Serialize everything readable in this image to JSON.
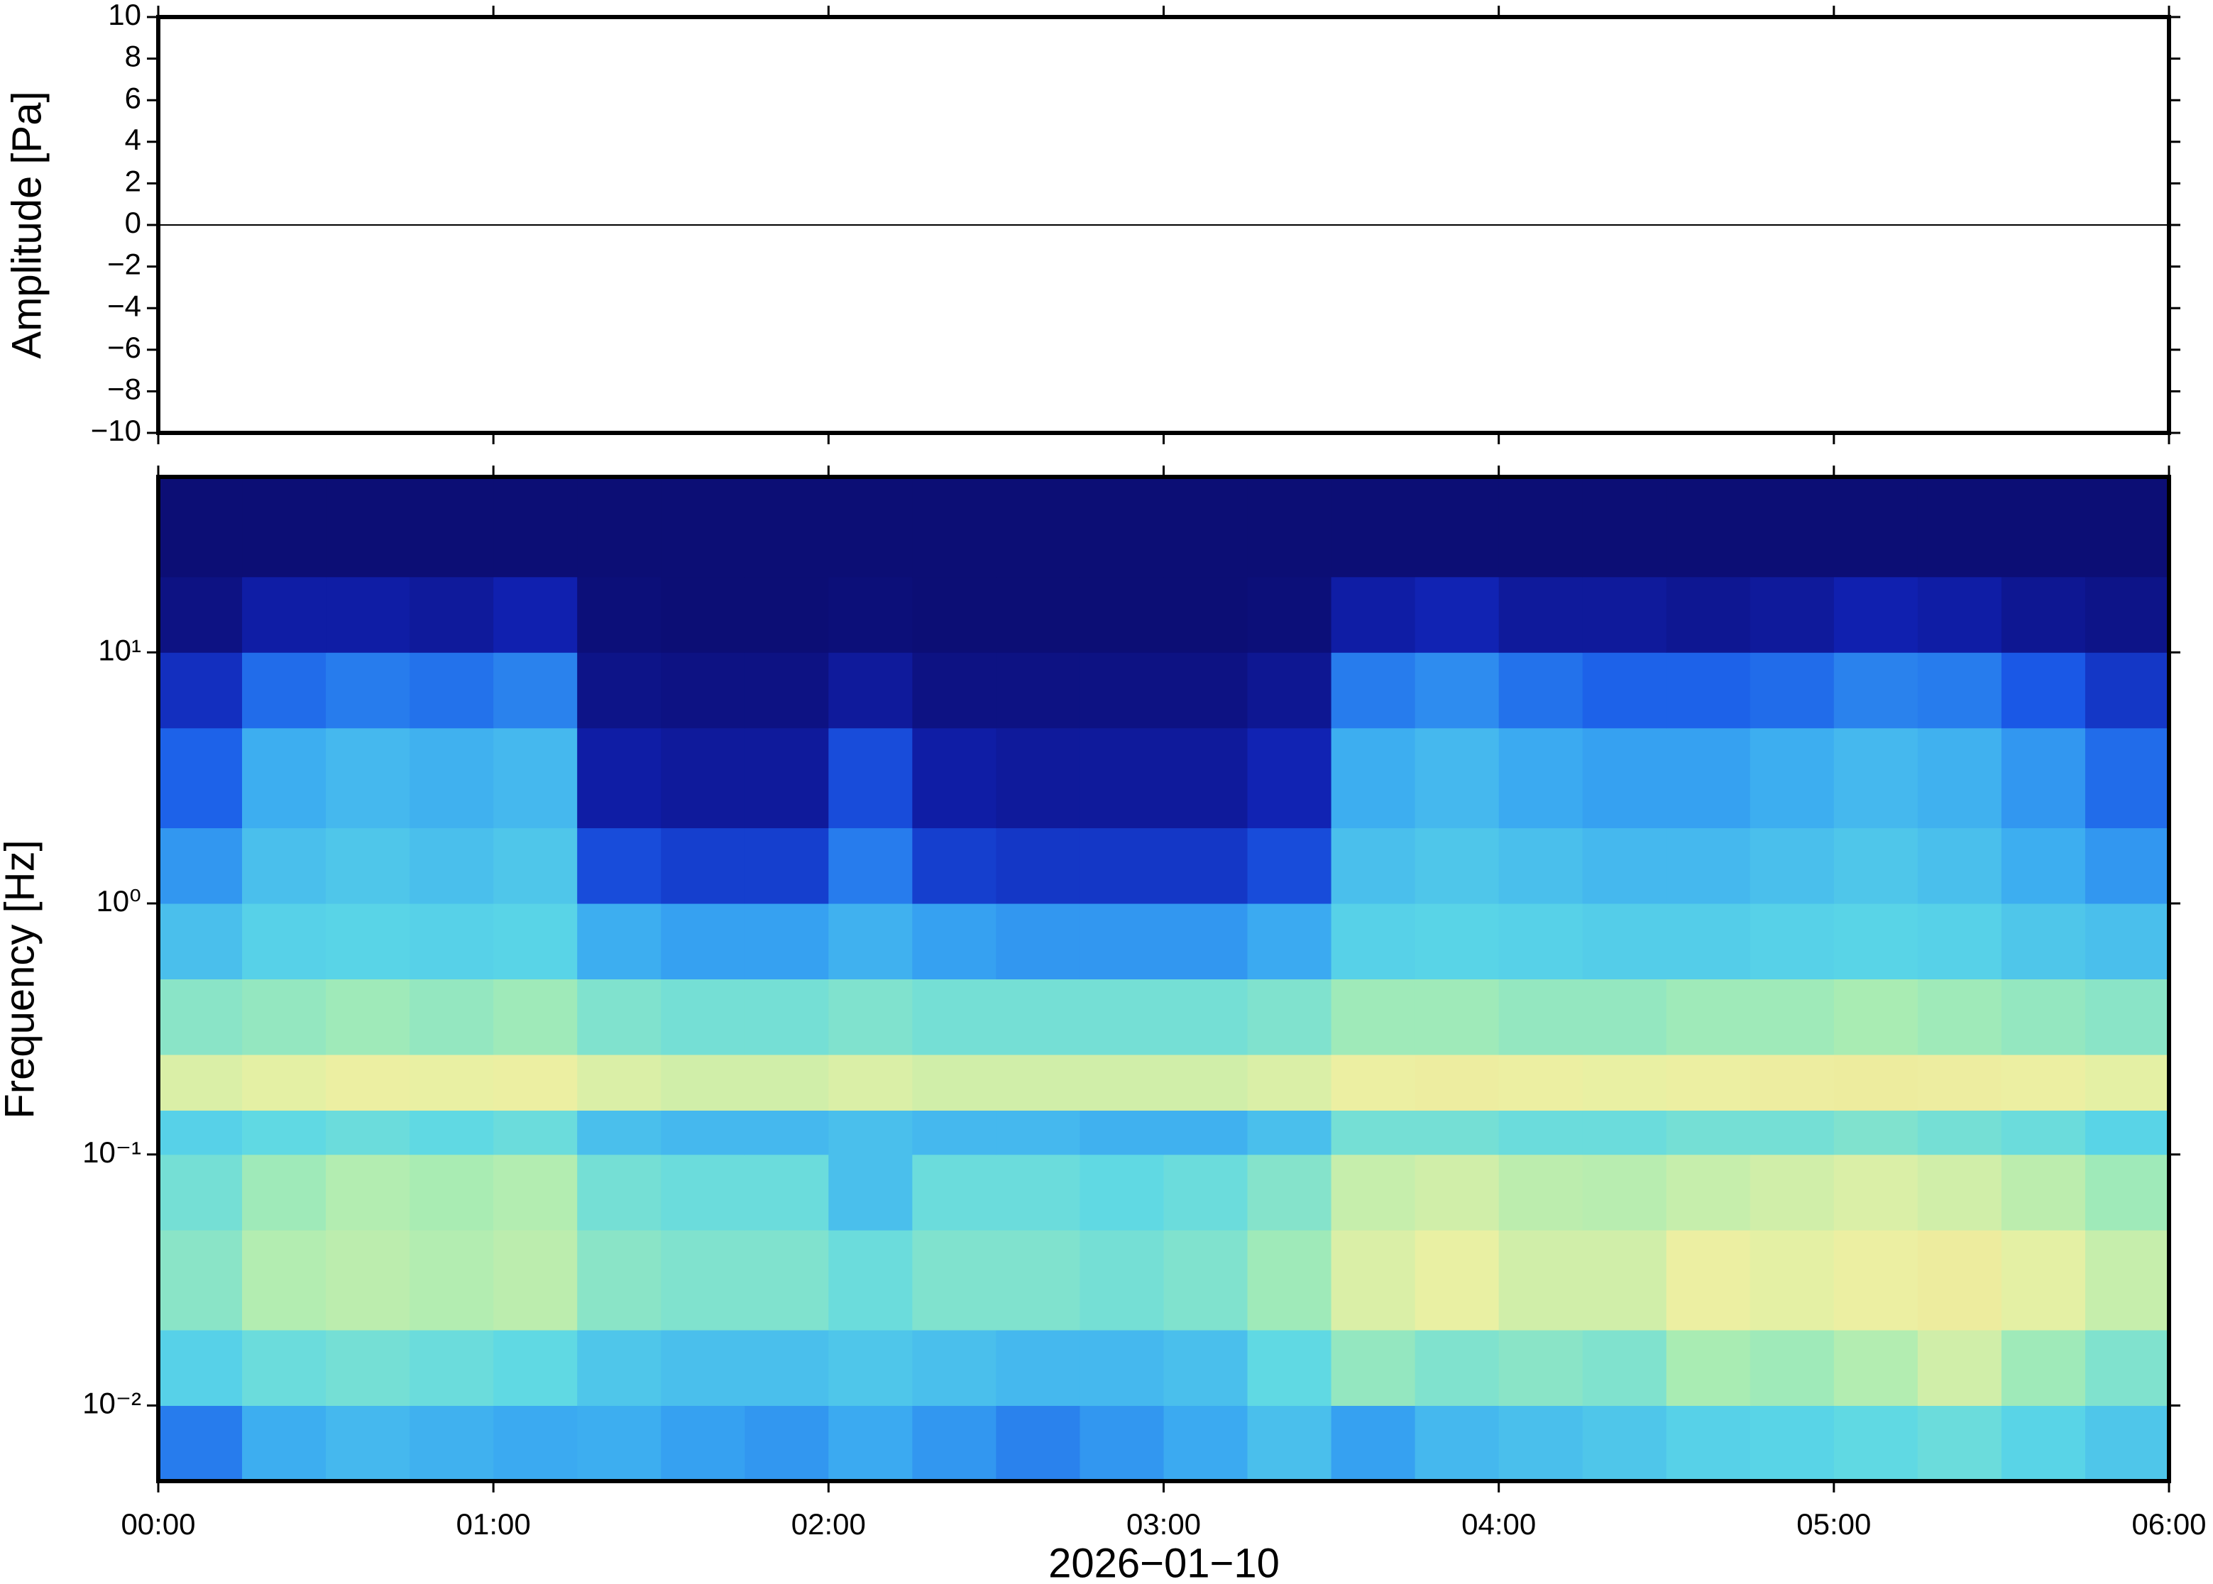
{
  "chart_data": [
    {
      "type": "line",
      "ylabel": "Amplitude [Pa]",
      "xlim": [
        "00:00",
        "06:00"
      ],
      "ylim": [
        -10,
        10
      ],
      "yticks": [
        {
          "value": -10,
          "label": "−10"
        },
        {
          "value": -8,
          "label": "−8"
        },
        {
          "value": -6,
          "label": "−6"
        },
        {
          "value": -4,
          "label": "−4"
        },
        {
          "value": -2,
          "label": "−2"
        },
        0,
        2,
        4,
        6,
        8,
        10
      ],
      "x": [
        "00:00",
        "00:30",
        "01:00",
        "01:30",
        "02:00",
        "02:30",
        "03:00",
        "03:30",
        "04:00",
        "04:30",
        "05:00",
        "05:30",
        "06:00"
      ],
      "values": [
        0,
        0,
        0,
        0,
        0,
        0,
        0,
        0,
        0,
        0,
        0,
        0,
        0
      ],
      "color": "#000000"
    },
    {
      "type": "spectrogram",
      "ylabel": "Frequency [Hz]",
      "xlabel": "2026−01−10",
      "xlim": [
        "00:00",
        "06:00"
      ],
      "xticks": [
        "00:00",
        "01:00",
        "02:00",
        "03:00",
        "04:00",
        "05:00",
        "06:00"
      ],
      "ylim": [
        0.005,
        50
      ],
      "log_y": true,
      "yticks": [
        {
          "value": 0.01,
          "label": "10⁻²"
        },
        {
          "value": 0.1,
          "label": "10⁻¹"
        },
        {
          "value": 1,
          "label": "10⁰"
        },
        {
          "value": 10,
          "label": "10¹"
        }
      ],
      "x_bins": [
        "00:00",
        "00:15",
        "00:30",
        "00:45",
        "01:00",
        "01:15",
        "01:30",
        "01:45",
        "02:00",
        "02:15",
        "02:30",
        "02:45",
        "03:00",
        "03:15",
        "03:30",
        "03:45",
        "04:00",
        "04:15",
        "04:30",
        "04:45",
        "05:00",
        "05:15",
        "05:30",
        "05:45",
        "06:00"
      ],
      "y_bins": [
        0.005,
        0.01,
        0.02,
        0.05,
        0.1,
        0.15,
        0.25,
        0.5,
        1,
        2,
        5,
        10,
        20,
        50
      ],
      "zlim": [
        0,
        1
      ],
      "colormap": [
        "#0b0b6b",
        "#1020b0",
        "#1a5ae8",
        "#38a6f2",
        "#5cd8e6",
        "#a6ecb4",
        "#ecf0a2",
        "#f2d48a"
      ],
      "values": [
        [
          0.35,
          0.45,
          0.48,
          0.46,
          0.44,
          0.45,
          0.42,
          0.4,
          0.44,
          0.4,
          0.36,
          0.4,
          0.44,
          0.5,
          0.42,
          0.48,
          0.5,
          0.52,
          0.55,
          0.56,
          0.58,
          0.6,
          0.56,
          0.52
        ],
        [
          0.55,
          0.6,
          0.62,
          0.6,
          0.58,
          0.52,
          0.5,
          0.5,
          0.52,
          0.5,
          0.48,
          0.48,
          0.5,
          0.58,
          0.68,
          0.64,
          0.66,
          0.64,
          0.72,
          0.7,
          0.74,
          0.8,
          0.7,
          0.64
        ],
        [
          0.66,
          0.74,
          0.76,
          0.74,
          0.76,
          0.66,
          0.64,
          0.64,
          0.6,
          0.64,
          0.64,
          0.62,
          0.64,
          0.7,
          0.82,
          0.85,
          0.8,
          0.8,
          0.86,
          0.84,
          0.86,
          0.88,
          0.84,
          0.78
        ],
        [
          0.62,
          0.7,
          0.74,
          0.72,
          0.74,
          0.62,
          0.6,
          0.6,
          0.5,
          0.6,
          0.6,
          0.58,
          0.6,
          0.65,
          0.78,
          0.8,
          0.76,
          0.75,
          0.78,
          0.8,
          0.82,
          0.8,
          0.76,
          0.7
        ],
        [
          0.55,
          0.58,
          0.6,
          0.58,
          0.6,
          0.5,
          0.48,
          0.48,
          0.5,
          0.48,
          0.48,
          0.46,
          0.46,
          0.5,
          0.62,
          0.62,
          0.6,
          0.6,
          0.62,
          0.62,
          0.64,
          0.62,
          0.6,
          0.56
        ],
        [
          0.82,
          0.84,
          0.86,
          0.85,
          0.86,
          0.82,
          0.8,
          0.8,
          0.82,
          0.8,
          0.8,
          0.8,
          0.8,
          0.82,
          0.86,
          0.87,
          0.86,
          0.85,
          0.86,
          0.87,
          0.88,
          0.87,
          0.86,
          0.84
        ],
        [
          0.66,
          0.68,
          0.7,
          0.68,
          0.7,
          0.64,
          0.62,
          0.62,
          0.64,
          0.62,
          0.62,
          0.62,
          0.62,
          0.64,
          0.7,
          0.7,
          0.68,
          0.68,
          0.7,
          0.7,
          0.72,
          0.7,
          0.68,
          0.66
        ],
        [
          0.5,
          0.55,
          0.56,
          0.55,
          0.56,
          0.45,
          0.42,
          0.42,
          0.46,
          0.42,
          0.4,
          0.4,
          0.4,
          0.44,
          0.55,
          0.56,
          0.55,
          0.54,
          0.54,
          0.55,
          0.56,
          0.55,
          0.52,
          0.5
        ],
        [
          0.4,
          0.5,
          0.52,
          0.5,
          0.52,
          0.25,
          0.22,
          0.22,
          0.35,
          0.22,
          0.2,
          0.2,
          0.2,
          0.25,
          0.5,
          0.52,
          0.5,
          0.48,
          0.48,
          0.5,
          0.52,
          0.5,
          0.45,
          0.4
        ],
        [
          0.3,
          0.45,
          0.48,
          0.46,
          0.48,
          0.12,
          0.1,
          0.1,
          0.25,
          0.12,
          0.1,
          0.1,
          0.1,
          0.15,
          0.45,
          0.48,
          0.44,
          0.42,
          0.42,
          0.45,
          0.48,
          0.46,
          0.4,
          0.32
        ],
        [
          0.18,
          0.32,
          0.35,
          0.33,
          0.36,
          0.06,
          0.05,
          0.05,
          0.1,
          0.05,
          0.05,
          0.05,
          0.05,
          0.08,
          0.35,
          0.38,
          0.33,
          0.3,
          0.3,
          0.32,
          0.36,
          0.35,
          0.28,
          0.2
        ],
        [
          0.05,
          0.12,
          0.12,
          0.1,
          0.14,
          0.03,
          0.02,
          0.02,
          0.03,
          0.02,
          0.02,
          0.02,
          0.02,
          0.03,
          0.12,
          0.15,
          0.1,
          0.1,
          0.08,
          0.1,
          0.14,
          0.12,
          0.08,
          0.06
        ],
        [
          0.02,
          0.02,
          0.02,
          0.02,
          0.02,
          0.02,
          0.02,
          0.02,
          0.02,
          0.02,
          0.02,
          0.02,
          0.02,
          0.02,
          0.02,
          0.02,
          0.02,
          0.02,
          0.02,
          0.02,
          0.02,
          0.02,
          0.02,
          0.02
        ]
      ]
    }
  ]
}
